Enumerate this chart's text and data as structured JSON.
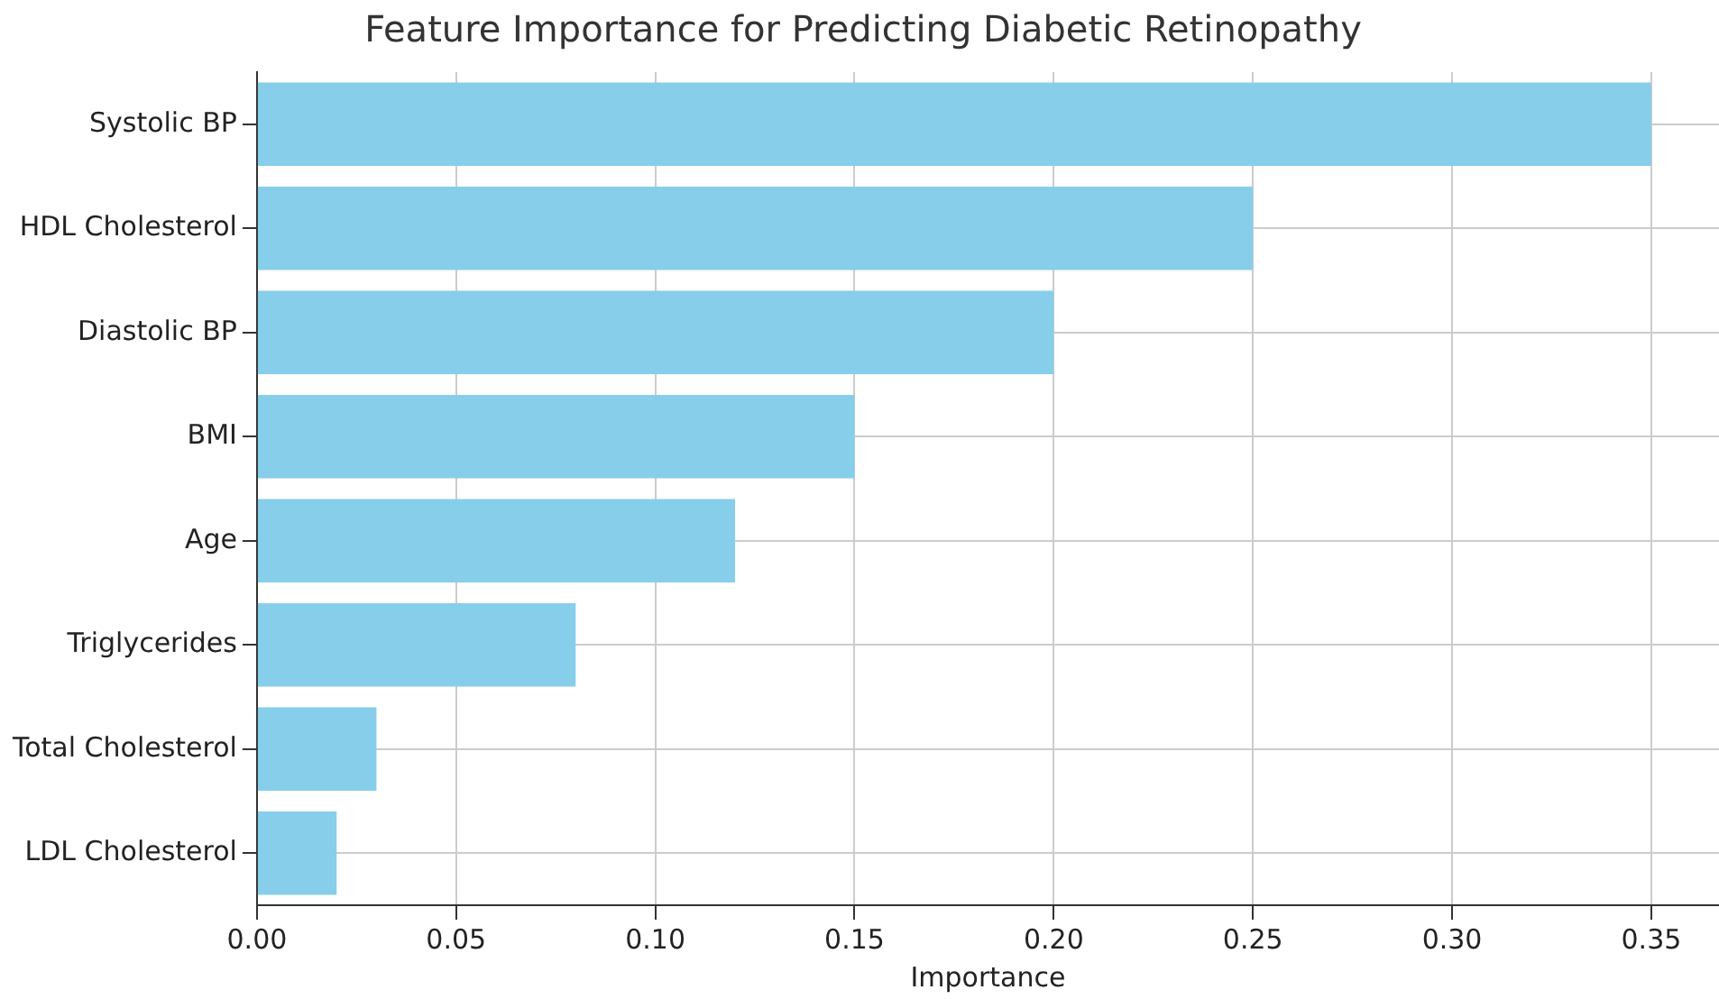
{
  "chart_data": {
    "type": "bar",
    "orientation": "horizontal",
    "title": "Feature Importance for Predicting Diabetic Retinopathy",
    "xlabel": "Importance",
    "categories": [
      "Systolic BP",
      "HDL Cholesterol",
      "Diastolic BP",
      "BMI",
      "Age",
      "Triglycerides",
      "Total Cholesterol",
      "LDL Cholesterol"
    ],
    "values": [
      0.35,
      0.25,
      0.2,
      0.15,
      0.12,
      0.08,
      0.03,
      0.02
    ],
    "color": "#87ceeb",
    "xlim": [
      0,
      0.367
    ],
    "xticks": [
      {
        "value": 0,
        "label": "0.00"
      },
      {
        "value": 0.05,
        "label": "0.05"
      },
      {
        "value": 0.1,
        "label": "0.10"
      },
      {
        "value": 0.15,
        "label": "0.15"
      },
      {
        "value": 0.2,
        "label": "0.20"
      },
      {
        "value": 0.25,
        "label": "0.25"
      },
      {
        "value": 0.3,
        "label": "0.30"
      },
      {
        "value": 0.35,
        "label": "0.35"
      }
    ],
    "grid": true
  }
}
